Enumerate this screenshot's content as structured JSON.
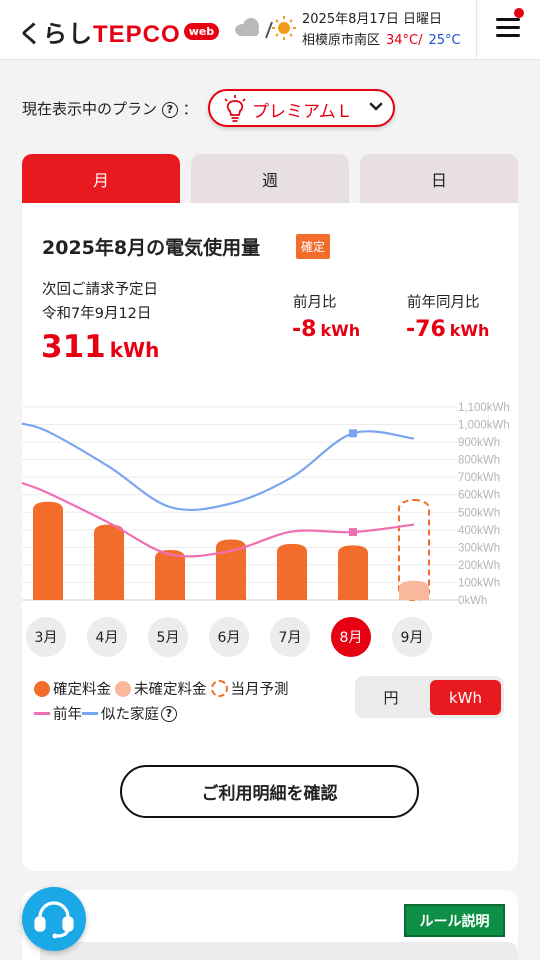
{
  "header": {
    "logo_prefix": "くらし",
    "logo_brand": "TEPCO",
    "logo_web": "web",
    "weather_date": "2025年8月17日 日曜日",
    "weather_location": "相模原市南区",
    "temp_high": "34°C/",
    "temp_low": "25°C",
    "weather_icons": [
      "cloud-icon",
      "sun-icon"
    ]
  },
  "plan": {
    "label": "現在表示中のプラン",
    "help": "?",
    "colon": "：",
    "name": "プレミアムＬ",
    "icon": "bulb-icon"
  },
  "tabs": [
    {
      "label": "月",
      "active": true
    },
    {
      "label": "週",
      "active": false
    },
    {
      "label": "日",
      "active": false
    }
  ],
  "summary": {
    "title": "2025年8月の電気使用量",
    "badge": "確定",
    "bill_label_line1": "次回ご請求予定日",
    "bill_label_line2": "令和7年9月12日",
    "usage_value": "311",
    "usage_unit": "kWh",
    "prev_month_label": "前月比",
    "prev_month_value": "-8",
    "prev_month_unit": "kWh",
    "prev_year_label": "前年同月比",
    "prev_year_value": "-76",
    "prev_year_unit": "kWh"
  },
  "chart_data": {
    "type": "bar",
    "categories": [
      "3月",
      "4月",
      "5月",
      "6月",
      "7月",
      "8月",
      "9月"
    ],
    "selected_category": "8月",
    "y_ticks": [
      "1,100kWh",
      "1,000kWh",
      "900kWh",
      "800kWh",
      "700kWh",
      "600kWh",
      "500kWh",
      "400kWh",
      "300kWh",
      "200kWh",
      "100kWh",
      "0kWh"
    ],
    "ylim": [
      0,
      1100
    ],
    "grid": true,
    "series": [
      {
        "name": "確定料金",
        "type": "bar",
        "color": "#f26c2c",
        "values": [
          560,
          430,
          285,
          345,
          320,
          311,
          null
        ]
      },
      {
        "name": "未確定料金",
        "type": "bar",
        "color": "#f9b89c",
        "values": [
          null,
          null,
          null,
          null,
          null,
          null,
          110
        ]
      },
      {
        "name": "当月予測",
        "type": "dashed-bar",
        "color": "#f26c2c",
        "values": [
          null,
          null,
          null,
          null,
          null,
          null,
          570
        ]
      },
      {
        "name": "前年",
        "type": "line",
        "color": "#f06fb4",
        "values": [
          610,
          440,
          260,
          280,
          390,
          387,
          430
        ]
      },
      {
        "name": "似た家庭",
        "type": "line",
        "color": "#7aa6f0",
        "values": [
          960,
          760,
          530,
          550,
          700,
          950,
          920
        ]
      }
    ]
  },
  "legend": {
    "confirmed": "確定料金",
    "unconfirmed": "未確定料金",
    "forecast": "当月予測",
    "last_year": "前年",
    "similar": "似た家庭",
    "help": "?"
  },
  "unit_toggle": {
    "yen": "円",
    "kwh": "kWh",
    "selected": "kWh"
  },
  "detail_button": "ご利用明細を確認",
  "rule_button": "ルール説明"
}
